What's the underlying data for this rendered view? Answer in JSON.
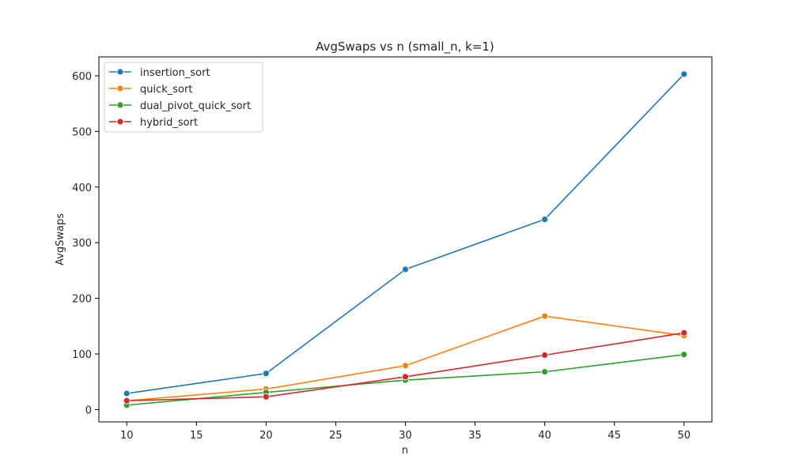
{
  "chart_data": {
    "type": "line",
    "title": "AvgSwaps vs n (small_n, k=1)",
    "xlabel": "n",
    "ylabel": "AvgSwaps",
    "x": [
      10,
      20,
      30,
      40,
      50
    ],
    "xlim": [
      8,
      52
    ],
    "ylim": [
      -22,
      634
    ],
    "xticks": [
      10,
      15,
      20,
      25,
      30,
      35,
      40,
      45,
      50
    ],
    "yticks": [
      0,
      100,
      200,
      300,
      400,
      500,
      600
    ],
    "grid": false,
    "legend_position": "top-left",
    "series": [
      {
        "name": "insertion_sort",
        "color": "#1f77b4",
        "values": [
          29,
          65,
          252,
          342,
          603
        ]
      },
      {
        "name": "quick_sort",
        "color": "#ff7f0e",
        "values": [
          16,
          37,
          79,
          168,
          133
        ]
      },
      {
        "name": "dual_pivot_quick_sort",
        "color": "#2ca02c",
        "values": [
          8,
          31,
          53,
          68,
          99
        ]
      },
      {
        "name": "hybrid_sort",
        "color": "#d62728",
        "values": [
          16,
          23,
          59,
          98,
          138
        ]
      }
    ]
  }
}
